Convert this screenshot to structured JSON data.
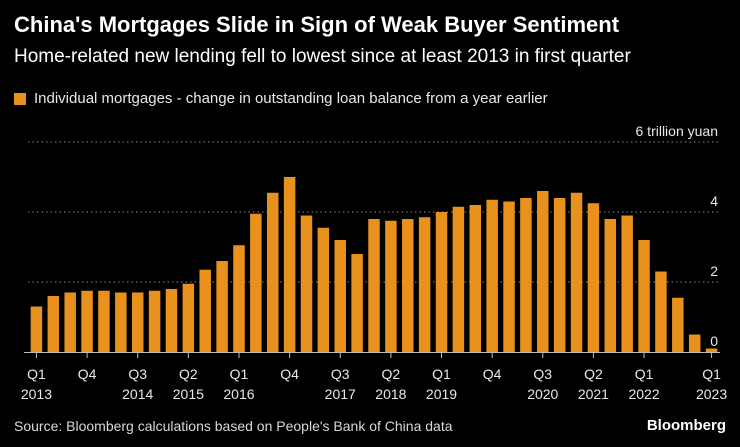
{
  "header": {
    "title": "China's Mortgages Slide in Sign of Weak Buyer Sentiment",
    "subtitle": "Home-related new lending fell to lowest since at least 2013 in first quarter"
  },
  "legend": {
    "label": "Individual mortgages - change in outstanding loan balance from a year earlier",
    "color": "#e8911d"
  },
  "footer": {
    "source": "Source: Bloomberg calculations based on People's Bank of China data",
    "brand": "Bloomberg"
  },
  "chart_data": {
    "type": "bar",
    "title": "China's Mortgages Slide in Sign of Weak Buyer Sentiment",
    "ylabel": "6 trillion yuan",
    "ylim": [
      0,
      6
    ],
    "yticks": [
      {
        "value": 6,
        "label": "6 trillion yuan"
      },
      {
        "value": 4,
        "label": "4"
      },
      {
        "value": 2,
        "label": "2"
      },
      {
        "value": 0,
        "label": "0"
      }
    ],
    "grid": true,
    "bar_color": "#e8911d",
    "categories": [
      "Q1 2013",
      "Q2 2013",
      "Q3 2013",
      "Q4 2013",
      "Q1 2014",
      "Q2 2014",
      "Q3 2014",
      "Q4 2014",
      "Q1 2015",
      "Q2 2015",
      "Q3 2015",
      "Q4 2015",
      "Q1 2016",
      "Q2 2016",
      "Q3 2016",
      "Q4 2016",
      "Q1 2017",
      "Q2 2017",
      "Q3 2017",
      "Q4 2017",
      "Q1 2018",
      "Q2 2018",
      "Q3 2018",
      "Q4 2018",
      "Q1 2019",
      "Q2 2019",
      "Q3 2019",
      "Q4 2019",
      "Q1 2020",
      "Q2 2020",
      "Q3 2020",
      "Q4 2020",
      "Q1 2021",
      "Q2 2021",
      "Q3 2021",
      "Q4 2021",
      "Q1 2022",
      "Q2 2022",
      "Q3 2022",
      "Q4 2022",
      "Q1 2023"
    ],
    "values": [
      1.3,
      1.6,
      1.7,
      1.75,
      1.75,
      1.7,
      1.7,
      1.75,
      1.8,
      1.95,
      2.35,
      2.6,
      3.05,
      3.95,
      4.55,
      5.0,
      3.9,
      3.55,
      3.2,
      2.8,
      3.8,
      3.75,
      3.8,
      3.85,
      4.0,
      4.15,
      4.2,
      4.35,
      4.3,
      4.4,
      4.6,
      4.4,
      4.55,
      4.25,
      3.8,
      3.9,
      3.2,
      2.3,
      1.55,
      0.5,
      0.1
    ],
    "x_tick_labels": [
      {
        "index": 0,
        "quarter": "Q1",
        "year": "2013"
      },
      {
        "index": 3,
        "quarter": "Q4",
        "year": ""
      },
      {
        "index": 6,
        "quarter": "Q3",
        "year": "2014"
      },
      {
        "index": 9,
        "quarter": "Q2",
        "year": "2015"
      },
      {
        "index": 12,
        "quarter": "Q1",
        "year": "2016"
      },
      {
        "index": 15,
        "quarter": "Q4",
        "year": ""
      },
      {
        "index": 18,
        "quarter": "Q3",
        "year": "2017"
      },
      {
        "index": 21,
        "quarter": "Q2",
        "year": "2018"
      },
      {
        "index": 24,
        "quarter": "Q1",
        "year": "2019"
      },
      {
        "index": 27,
        "quarter": "Q4",
        "year": ""
      },
      {
        "index": 30,
        "quarter": "Q3",
        "year": "2020"
      },
      {
        "index": 33,
        "quarter": "Q2",
        "year": "2021"
      },
      {
        "index": 36,
        "quarter": "Q1",
        "year": "2022"
      },
      {
        "index": 40,
        "quarter": "Q1",
        "year": "2023"
      }
    ]
  }
}
